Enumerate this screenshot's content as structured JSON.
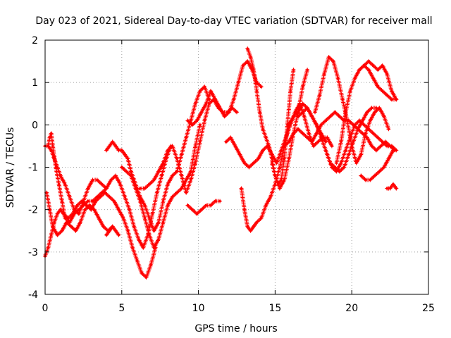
{
  "chart_data": {
    "type": "scatter",
    "title": "Day 023 of 2021, Sidereal Day-to-day VTEC variation (SDTVAR) for receiver mall",
    "xlabel": "GPS time / hours",
    "ylabel": "SDTVAR / TECUs",
    "xlim": [
      0,
      25
    ],
    "ylim": [
      -4,
      2
    ],
    "xticks": [
      "0",
      "5",
      "10",
      "15",
      "20",
      "25"
    ],
    "yticks": [
      "-4",
      "-3",
      "-2",
      "-1",
      "0",
      "1",
      "2"
    ],
    "grid": true,
    "marker": "+",
    "color": "#ff0000",
    "series": [
      {
        "x": [
          0,
          0.2,
          0.4,
          0.6,
          0.8,
          1.0,
          1.2,
          1.5,
          1.8,
          2.1,
          2.4,
          2.7,
          3.0,
          3.3,
          3.6,
          3.9,
          4.2,
          4.5,
          4.8,
          5.1,
          5.4,
          5.7,
          6.0,
          6.3,
          6.6,
          6.9,
          7.2
        ],
        "y": [
          -3.1,
          -2.9,
          -2.6,
          -2.3,
          -2.1,
          -2.0,
          -2.1,
          -2.2,
          -2.1,
          -1.9,
          -1.8,
          -1.9,
          -2.0,
          -1.8,
          -1.7,
          -1.6,
          -1.7,
          -1.8,
          -2.0,
          -2.2,
          -2.5,
          -2.9,
          -3.2,
          -3.5,
          -3.6,
          -3.3,
          -2.9
        ]
      },
      {
        "x": [
          0,
          0.2,
          0.4,
          0.6,
          0.8,
          1.0,
          1.3,
          1.6,
          1.9,
          2.2,
          2.5,
          2.8,
          3.1,
          3.4,
          3.7,
          4.0,
          4.3,
          4.6,
          4.9,
          5.2,
          5.5,
          5.8,
          6.1,
          6.4,
          6.7,
          7.0,
          7.3,
          7.6,
          7.9,
          8.2
        ],
        "y": [
          -0.5,
          -0.5,
          -0.6,
          -0.8,
          -1.0,
          -1.2,
          -1.4,
          -1.7,
          -2.0,
          -2.1,
          -1.8,
          -1.5,
          -1.3,
          -1.3,
          -1.4,
          -1.5,
          -1.3,
          -1.2,
          -1.4,
          -1.7,
          -2.0,
          -2.4,
          -2.7,
          -2.9,
          -2.6,
          -2.1,
          -1.6,
          -1.2,
          -0.8,
          -0.5
        ]
      },
      {
        "x": [
          0.1,
          0.3,
          0.5,
          0.8,
          1.1,
          1.4,
          1.7,
          2.0,
          2.3,
          2.6,
          2.9,
          3.2,
          3.5,
          3.8,
          4.1,
          4.4
        ],
        "y": [
          -1.6,
          -2.0,
          -2.4,
          -2.6,
          -2.5,
          -2.3,
          -2.4,
          -2.5,
          -2.3,
          -2.0,
          -1.9,
          -2.0,
          -2.2,
          -2.4,
          -2.5,
          -2.4
        ]
      },
      {
        "x": [
          0.2,
          0.3,
          0.4,
          0.5,
          0.7,
          0.9,
          1.1,
          1.3,
          1.6,
          1.9,
          2.2,
          2.5,
          2.8,
          3.1,
          3.4,
          3.7,
          4.0
        ],
        "y": [
          -0.5,
          -0.3,
          -0.2,
          -0.5,
          -1.0,
          -1.4,
          -1.8,
          -2.2,
          -2.3,
          -2.1,
          -2.0,
          -1.9,
          -1.8,
          -1.8,
          -1.7,
          -1.6,
          -1.5
        ]
      },
      {
        "x": [
          4.0,
          4.2,
          4.4,
          4.6,
          4.8,
          5.0,
          5.2,
          5.4,
          5.6,
          5.8,
          6.0,
          6.2,
          6.5,
          6.8,
          7.1,
          7.4,
          7.7,
          8.0,
          8.3,
          8.6,
          8.9,
          9.2,
          9.5,
          9.8,
          10.1,
          10.4,
          10.7
        ],
        "y": [
          -0.6,
          -0.5,
          -0.4,
          -0.5,
          -0.6,
          -0.6,
          -0.7,
          -0.8,
          -1.1,
          -1.3,
          -1.5,
          -1.7,
          -1.9,
          -2.2,
          -2.5,
          -2.3,
          -1.8,
          -1.4,
          -1.2,
          -1.1,
          -0.7,
          -0.3,
          0.1,
          0.5,
          0.8,
          0.9,
          0.6
        ]
      },
      {
        "x": [
          5.0,
          5.3,
          5.6,
          5.9,
          6.2,
          6.5,
          6.8,
          7.1,
          7.4,
          7.7,
          8.0,
          8.3,
          8.6,
          8.9,
          9.2,
          9.5,
          9.8,
          10.1
        ],
        "y": [
          -1.0,
          -1.1,
          -1.2,
          -1.5,
          -1.8,
          -2.2,
          -2.6,
          -2.9,
          -2.7,
          -2.3,
          -1.9,
          -1.7,
          -1.6,
          -1.5,
          -1.3,
          -1.1,
          -0.5,
          0.0
        ]
      },
      {
        "x": [
          6.2,
          6.5,
          6.8,
          7.1,
          7.4,
          7.7,
          8.0,
          8.3,
          8.6,
          8.9,
          9.2,
          9.5,
          9.8,
          10.1,
          10.4,
          10.7,
          11.0,
          11.3,
          11.6,
          11.9,
          12.2,
          12.5
        ],
        "y": [
          -1.5,
          -1.5,
          -1.4,
          -1.3,
          -1.1,
          -0.9,
          -0.6,
          -0.5,
          -0.8,
          -1.2,
          -1.6,
          -1.3,
          -0.9,
          -0.4,
          0.1,
          0.5,
          0.6,
          0.4,
          0.3,
          0.3,
          0.4,
          0.3
        ]
      },
      {
        "x": [
          4.0,
          4.2,
          4.4,
          4.6,
          4.8
        ],
        "y": [
          -2.6,
          -2.5,
          -2.4,
          -2.5,
          -2.6
        ]
      },
      {
        "x": [
          9.3,
          9.6,
          9.9,
          10.2,
          10.5,
          10.8,
          11.1,
          11.4,
          11.7,
          12.0,
          12.3,
          12.6,
          12.9,
          13.2,
          13.5,
          13.8,
          14.1
        ],
        "y": [
          0.1,
          0.0,
          0.1,
          0.3,
          0.5,
          0.8,
          0.6,
          0.4,
          0.2,
          0.3,
          0.6,
          1.0,
          1.4,
          1.5,
          1.3,
          1.0,
          0.9
        ]
      },
      {
        "x": [
          9.3,
          9.6,
          9.9,
          10.2,
          10.5,
          10.8,
          11.1,
          11.4
        ],
        "y": [
          -1.9,
          -2.0,
          -2.1,
          -2.0,
          -1.9,
          -1.9,
          -1.8,
          -1.8
        ]
      },
      {
        "x": [
          11.8,
          12.1,
          12.4,
          12.7,
          13.0,
          13.3,
          13.6,
          13.9,
          14.2,
          14.5,
          14.8,
          15.1,
          15.4,
          15.7,
          16.0,
          16.3,
          16.6,
          16.9,
          17.2,
          17.5,
          17.8,
          18.1,
          18.4,
          18.7
        ],
        "y": [
          -0.4,
          -0.3,
          -0.5,
          -0.7,
          -0.9,
          -1.0,
          -0.9,
          -0.8,
          -0.6,
          -0.5,
          -0.7,
          -0.9,
          -0.6,
          -0.3,
          0.0,
          0.3,
          0.5,
          0.2,
          -0.2,
          -0.5,
          -0.4,
          -0.3,
          -0.3,
          -0.5
        ]
      },
      {
        "x": [
          12.8,
          13.0,
          13.2,
          13.4,
          13.6,
          13.8,
          14.1,
          14.4,
          14.7,
          15.0,
          15.3,
          15.6,
          15.9,
          16.2,
          16.5,
          16.8,
          17.1,
          17.4,
          17.7,
          18.0,
          18.3
        ],
        "y": [
          -1.5,
          -2.0,
          -2.4,
          -2.5,
          -2.4,
          -2.3,
          -2.2,
          -1.9,
          -1.7,
          -1.4,
          -1.0,
          -0.5,
          0.0,
          0.2,
          0.3,
          0.5,
          0.4,
          0.2,
          0.0,
          -0.2,
          -0.4
        ]
      },
      {
        "x": [
          13.2,
          13.4,
          13.6,
          13.8,
          14.0,
          14.2,
          14.4,
          14.6,
          14.8,
          15.0,
          15.2,
          15.4,
          15.6,
          15.8,
          16.0,
          16.2
        ],
        "y": [
          1.8,
          1.6,
          1.3,
          0.8,
          0.3,
          -0.1,
          -0.3,
          -0.5,
          -0.8,
          -1.2,
          -1.4,
          -1.3,
          -0.8,
          0.0,
          0.8,
          1.3
        ]
      },
      {
        "x": [
          14.8,
          15.0,
          15.3,
          15.6,
          15.9,
          16.2,
          16.5,
          16.8,
          17.1
        ],
        "y": [
          -0.9,
          -1.2,
          -1.5,
          -1.3,
          -0.8,
          -0.2,
          0.3,
          0.9,
          1.3
        ]
      },
      {
        "x": [
          15.6,
          15.9,
          16.2,
          16.5,
          16.8,
          17.1,
          17.4,
          17.7,
          18.0,
          18.3,
          18.6,
          18.9,
          19.2,
          19.5,
          19.8,
          20.1,
          20.4,
          20.7,
          21.0,
          21.3,
          21.6,
          21.9,
          22.2,
          22.5,
          22.8
        ],
        "y": [
          -0.5,
          -0.4,
          -0.2,
          -0.1,
          -0.2,
          -0.3,
          -0.4,
          -0.2,
          0.0,
          0.1,
          0.2,
          0.3,
          0.2,
          0.1,
          0.1,
          0.0,
          -0.1,
          -0.2,
          -0.3,
          -0.5,
          -0.6,
          -0.5,
          -0.4,
          -0.5,
          -0.6
        ]
      },
      {
        "x": [
          16.5,
          16.8,
          17.1,
          17.4,
          17.7,
          18.0,
          18.3,
          18.6,
          18.9,
          19.2,
          19.5,
          19.8,
          20.1,
          20.4,
          20.7,
          21.0,
          21.3,
          21.6
        ],
        "y": [
          0.2,
          0.3,
          0.4,
          0.2,
          0.0,
          -0.3,
          -0.6,
          -0.9,
          -1.0,
          -1.1,
          -1.0,
          -0.7,
          -0.4,
          -0.1,
          0.1,
          0.3,
          0.4,
          0.4
        ]
      },
      {
        "x": [
          17.6,
          17.9,
          18.2,
          18.5,
          18.8,
          19.1,
          19.4,
          19.7,
          20.0,
          20.3,
          20.6,
          20.9,
          21.2,
          21.5,
          21.8,
          22.1,
          22.4
        ],
        "y": [
          0.3,
          0.7,
          1.2,
          1.6,
          1.5,
          1.1,
          0.6,
          0.1,
          -0.5,
          -0.9,
          -0.7,
          -0.2,
          0.1,
          0.3,
          0.4,
          0.2,
          -0.1
        ]
      },
      {
        "x": [
          18.4,
          18.7,
          19.0,
          19.3,
          19.6,
          19.9,
          20.2,
          20.5,
          20.8,
          21.1,
          21.4,
          21.7,
          22.0,
          22.3,
          22.6,
          22.9
        ],
        "y": [
          -0.7,
          -1.0,
          -1.1,
          -0.9,
          -0.6,
          -0.3,
          0.0,
          0.1,
          0.0,
          -0.1,
          -0.2,
          -0.3,
          -0.4,
          -0.5,
          -0.5,
          -0.6
        ]
      },
      {
        "x": [
          19.0,
          19.3,
          19.6,
          19.9,
          20.2,
          20.5,
          20.8,
          21.1,
          21.4,
          21.7,
          22.0,
          22.3,
          22.6,
          22.9
        ],
        "y": [
          -0.9,
          -0.4,
          0.3,
          0.8,
          1.1,
          1.3,
          1.4,
          1.5,
          1.4,
          1.3,
          1.4,
          1.2,
          0.8,
          0.6
        ]
      },
      {
        "x": [
          20.5,
          20.8,
          21.1,
          21.4,
          21.7,
          22.0,
          22.3,
          22.6,
          22.9
        ],
        "y": [
          1.3,
          1.4,
          1.3,
          1.1,
          0.9,
          0.8,
          0.7,
          0.6,
          0.6
        ]
      },
      {
        "x": [
          20.6,
          20.9,
          21.2,
          21.5,
          21.8,
          22.1,
          22.4,
          22.7
        ],
        "y": [
          -1.2,
          -1.3,
          -1.3,
          -1.2,
          -1.1,
          -1.0,
          -0.8,
          -0.6
        ]
      },
      {
        "x": [
          22.3,
          22.5,
          22.7,
          22.9
        ],
        "y": [
          -1.5,
          -1.5,
          -1.4,
          -1.5
        ]
      }
    ]
  }
}
